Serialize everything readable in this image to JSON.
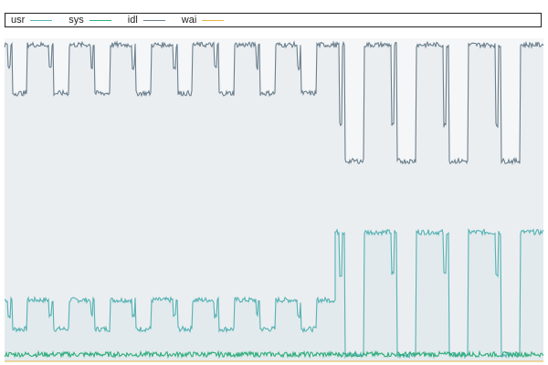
{
  "chart_data": {
    "type": "line",
    "title": "",
    "xlabel": "",
    "ylabel": "",
    "ylim": [
      0,
      100
    ],
    "grid": false,
    "legend_position": "top",
    "background_color": "#f4f6f8",
    "series": [
      {
        "name": "usr",
        "color": "#56b6b6",
        "fill": true,
        "phases": [
          {
            "cycles": 8,
            "low": 10,
            "high": 19,
            "dip": 14
          },
          {
            "cycles": 4,
            "low": 2,
            "high": 40,
            "dip": 27
          }
        ]
      },
      {
        "name": "sys",
        "color": "#2bb07a",
        "fill": false,
        "baseline": 2
      },
      {
        "name": "idl",
        "color": "#6b7f8c",
        "fill": true,
        "phases": [
          {
            "cycles": 8,
            "low": 83,
            "high": 98,
            "dip": 91
          },
          {
            "cycles": 4,
            "low": 62,
            "high": 98,
            "dip": 73
          }
        ]
      },
      {
        "name": "wai",
        "color": "#e8b54a",
        "fill": false,
        "baseline": 0
      }
    ]
  }
}
